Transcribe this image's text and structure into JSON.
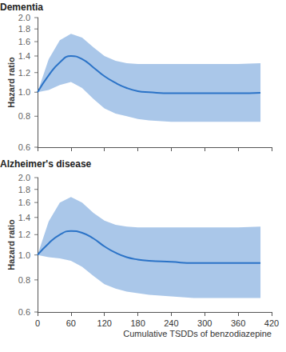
{
  "chart_data": [
    {
      "type": "line",
      "title": "Dementia",
      "ylabel": "Hazard ratio",
      "x": [
        0,
        20,
        40,
        60,
        80,
        100,
        120,
        140,
        160,
        180,
        200,
        240,
        280,
        320,
        360,
        400
      ],
      "values": [
        1.0,
        1.17,
        1.32,
        1.4,
        1.36,
        1.26,
        1.16,
        1.09,
        1.04,
        1.01,
        1.0,
        0.99,
        0.99,
        0.99,
        0.99,
        0.995
      ],
      "upper": [
        1.0,
        1.36,
        1.62,
        1.72,
        1.66,
        1.52,
        1.4,
        1.34,
        1.31,
        1.3,
        1.3,
        1.3,
        1.3,
        1.3,
        1.3,
        1.31
      ],
      "lower": [
        1.0,
        1.02,
        1.07,
        1.1,
        1.04,
        0.94,
        0.86,
        0.82,
        0.8,
        0.78,
        0.77,
        0.76,
        0.76,
        0.76,
        0.76,
        0.76
      ],
      "color": "#2b73c7",
      "log": "y",
      "xlim": [
        0,
        420
      ],
      "xticks": [
        0,
        60,
        120,
        180,
        240,
        300,
        360,
        420
      ],
      "ylim": [
        0.6,
        2.0
      ],
      "yticks": [
        0.6,
        0.8,
        {
          "value": 1,
          "label": "1.0"
        },
        1.2,
        1.4,
        1.6,
        1.8,
        {
          "value": 2,
          "label": "2.0"
        }
      ],
      "grid": false,
      "tick_labels": "y"
    },
    {
      "type": "line",
      "title": "Alzheimer's disease",
      "ylabel": "Hazard ratio",
      "xlabel": "Cumulative TSDDs of benzodiazepine",
      "x": [
        0,
        20,
        40,
        60,
        80,
        100,
        120,
        140,
        160,
        180,
        200,
        240,
        280,
        320,
        360,
        400
      ],
      "values": [
        1.0,
        1.11,
        1.2,
        1.24,
        1.22,
        1.16,
        1.08,
        1.02,
        0.98,
        0.96,
        0.95,
        0.94,
        0.93,
        0.93,
        0.93,
        0.93
      ],
      "upper": [
        1.0,
        1.35,
        1.6,
        1.68,
        1.6,
        1.46,
        1.36,
        1.31,
        1.29,
        1.28,
        1.28,
        1.28,
        1.28,
        1.28,
        1.28,
        1.29
      ],
      "lower": [
        1.0,
        0.98,
        0.97,
        0.95,
        0.9,
        0.83,
        0.77,
        0.74,
        0.72,
        0.71,
        0.7,
        0.69,
        0.68,
        0.68,
        0.68,
        0.68
      ],
      "color": "#2b73c7",
      "log": "y",
      "xlim": [
        0,
        420
      ],
      "xticks": [
        0,
        60,
        120,
        180,
        240,
        300,
        360,
        420
      ],
      "ylim": [
        0.6,
        2.0
      ],
      "yticks": [
        0.6,
        0.8,
        {
          "value": 1,
          "label": "1.0"
        },
        1.2,
        1.4,
        1.6,
        1.8,
        {
          "value": 2,
          "label": "2.0"
        }
      ],
      "grid": false
    }
  ]
}
